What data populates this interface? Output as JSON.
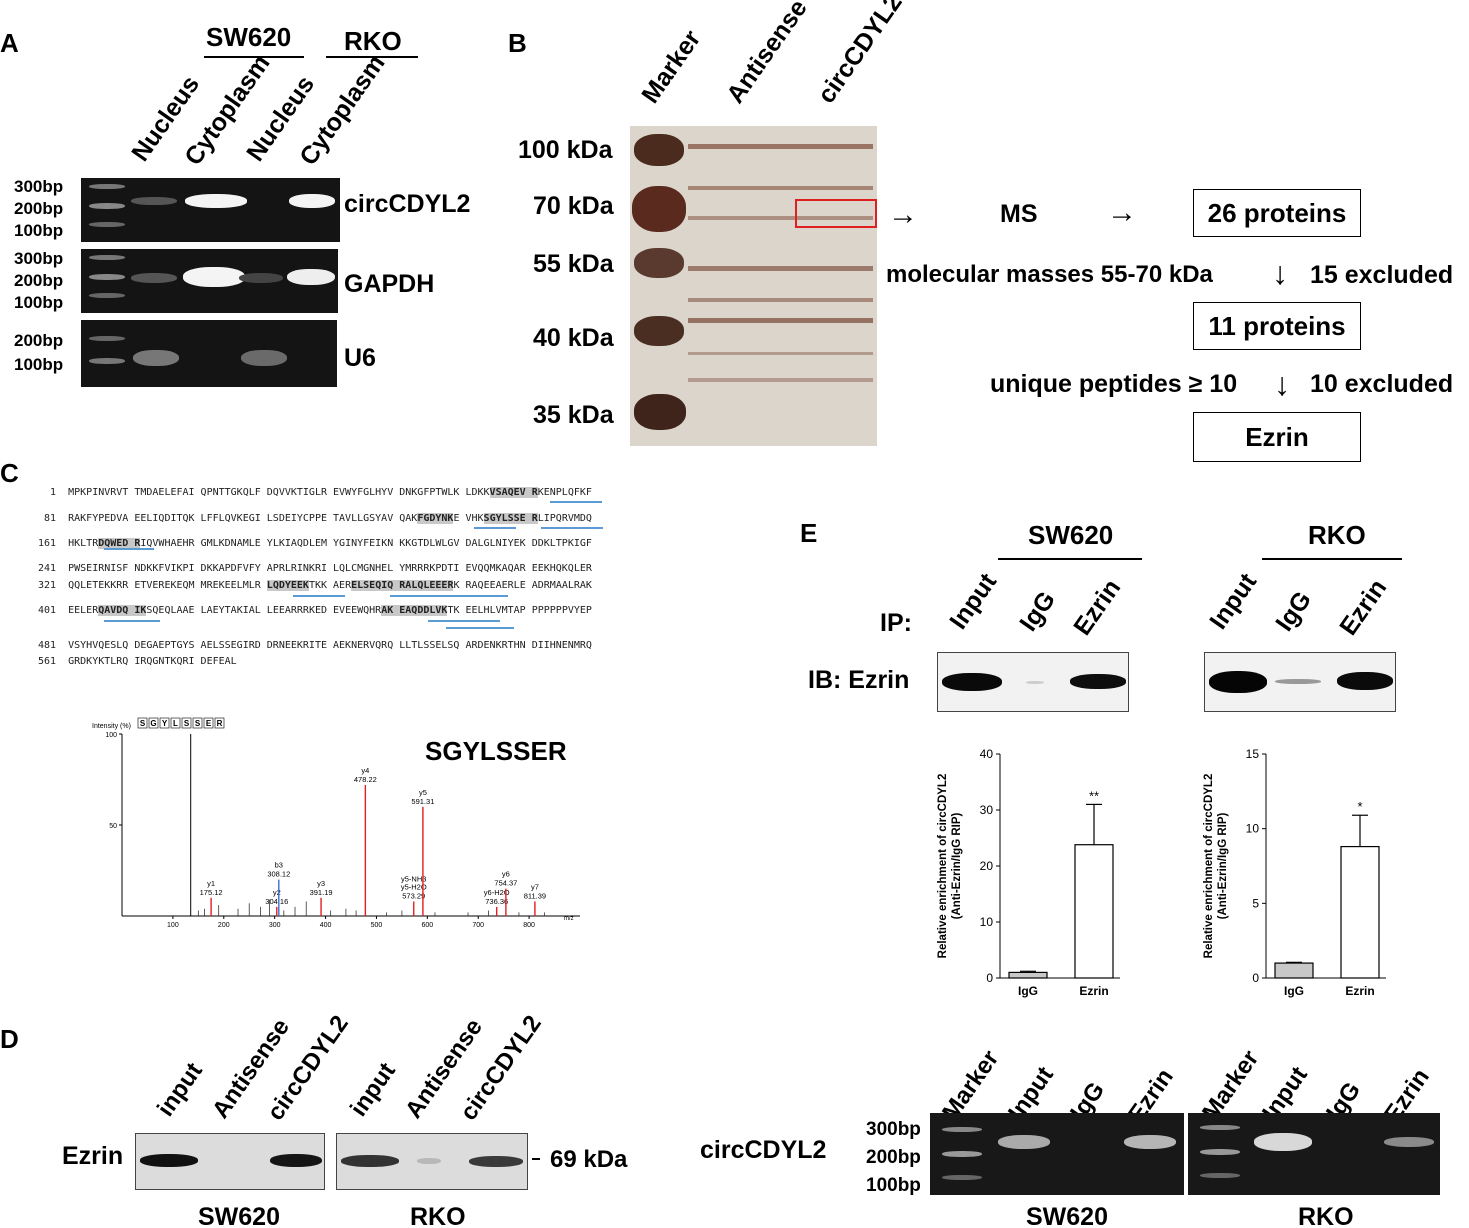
{
  "panelA": {
    "label": "A",
    "cell_lines": [
      "SW620",
      "RKO"
    ],
    "lanes": [
      "Nucleus",
      "Cytoplasm",
      "Nucleus",
      "Cytoplasm"
    ],
    "gels": [
      {
        "name": "circCDYL2",
        "ladder": [
          "300bp",
          "200bp",
          "100bp"
        ]
      },
      {
        "name": "GAPDH",
        "ladder": [
          "300bp",
          "200bp",
          "100bp"
        ]
      },
      {
        "name": "U6",
        "ladder": [
          "200bp",
          "100bp"
        ]
      }
    ]
  },
  "panelB": {
    "label": "B",
    "lanes": [
      "Marker",
      "Antisense",
      "circCDYL2"
    ],
    "markers": [
      "100 kDa",
      "70 kDa",
      "55 kDa",
      "40 kDa",
      "35 kDa"
    ],
    "ms": "MS",
    "step1": "26 proteins",
    "filter1": "molecular masses 55-70 kDa",
    "excl1": "15 excluded",
    "step2": "11 proteins",
    "filter2": "unique peptides ≥ 10",
    "excl2": "10 excluded",
    "result": "Ezrin"
  },
  "panelC": {
    "label": "C",
    "sequence": [
      {
        "n": "1",
        "segs": [
          {
            "t": "MPKPINVRVT TMDAELEFAI QPNTTGKQLF DQVVKTIGLR EVWYFGLHYV DNKGFPTWLK LDKK"
          },
          {
            "t": "VSAQEV R",
            "h": true
          },
          {
            "t": "KENPLQFKF"
          }
        ]
      },
      {
        "n": "81",
        "segs": [
          {
            "t": "RAKFYPEDVA EELIQDITQK LFFLQVKEGI LSDEIYCPPE TAVLLGSYAV QAK"
          },
          {
            "t": "FGDYNK",
            "h": true
          },
          {
            "t": "E VHK"
          },
          {
            "t": "SGYLSSE R",
            "h": true
          },
          {
            "t": "LIPQRVMDQ"
          }
        ]
      },
      {
        "n": "161",
        "segs": [
          {
            "t": "HKLTR"
          },
          {
            "t": "DQWED R",
            "h": true
          },
          {
            "t": "IQVWHAEHR GMLKDNAMLE YLKIAQDLEM YGINYFEIKN KKGTDLWLGV DALGLNIYEK DDKLTPKIGF"
          }
        ]
      },
      {
        "n": "241",
        "segs": [
          {
            "t": "PWSEIRNISF NDKKFVIKPI DKKAPDFVFY APRLRINKRI LQLCMGNHEL YMRRRKPDTI EVQQMKAQAR EEKHQKQLER"
          }
        ]
      },
      {
        "n": "321",
        "segs": [
          {
            "t": "QQLETEKKRR ETVEREKEQM MREKEELMLR "
          },
          {
            "t": "LQDYEEK",
            "h": true
          },
          {
            "t": "TKK AER"
          },
          {
            "t": "ELSEQIQ RALQLEEER",
            "h": true
          },
          {
            "t": "K RAQEEAERLE ADRMAALRAK"
          }
        ]
      },
      {
        "n": "401",
        "segs": [
          {
            "t": "EELER"
          },
          {
            "t": "QAVDQ IK",
            "h": true
          },
          {
            "t": "SQEQLAAE LAEYTAKIAL LEEARRRKED EVEEWQHR"
          },
          {
            "t": "AK EAQDDLVK",
            "h": true
          },
          {
            "t": "TK EELHLVMTAP PPPPPPVYEP"
          }
        ]
      },
      {
        "n": "481",
        "segs": [
          {
            "t": "VSYHVQESLQ DEGAEPTGYS AELSSEGIRD DRNEEKRITE AEKNERVQRQ LLTLSSELSQ ARDENKRTHN DIIHNENMRQ"
          }
        ]
      },
      {
        "n": "561",
        "segs": [
          {
            "t": "GRDKYKTLRQ IRQGNTKQRI DEFEAL"
          }
        ]
      }
    ],
    "spectrum": {
      "peptide": "SGYLSSER",
      "residues": [
        "S",
        "G",
        "Y",
        "L",
        "S",
        "S",
        "E",
        "R"
      ],
      "ylabel": "Intensity (%)",
      "xlabel": "m/z",
      "yticks": [
        "100",
        "50"
      ],
      "xticks": [
        "100",
        "200",
        "300",
        "400",
        "500",
        "600",
        "700",
        "800"
      ],
      "peaks": [
        {
          "ion": "y1",
          "mz": "175.12",
          "x": 175.12,
          "y": 10
        },
        {
          "ion": "y2",
          "mz": "304.16",
          "x": 304.16,
          "y": 5
        },
        {
          "ion": "b3",
          "mz": "308.12",
          "x": 308.12,
          "y": 20
        },
        {
          "ion": "y3",
          "mz": "391.19",
          "x": 391.19,
          "y": 10
        },
        {
          "ion": "y4",
          "mz": "478.22",
          "x": 478.22,
          "y": 72
        },
        {
          "ion": "y5-NH3 / y5-H2O",
          "mz": "573.29",
          "x": 573.29,
          "y": 8
        },
        {
          "ion": "y5",
          "mz": "591.31",
          "x": 591.31,
          "y": 60
        },
        {
          "ion": "y6-H2O",
          "mz": "736.36",
          "x": 736.36,
          "y": 5
        },
        {
          "ion": "y6",
          "mz": "754.37",
          "x": 754.37,
          "y": 15
        },
        {
          "ion": "y7",
          "mz": "811.39",
          "x": 811.39,
          "y": 8
        }
      ]
    }
  },
  "panelD": {
    "label": "D",
    "lanes": [
      "input",
      "Antisense",
      "circCDYL2",
      "input",
      "Antisense",
      "circCDYL2"
    ],
    "target": "Ezrin",
    "size": "69 kDa",
    "cell_lines": [
      "SW620",
      "RKO"
    ]
  },
  "panelE": {
    "label": "E",
    "cell_lines": [
      "SW620",
      "RKO"
    ],
    "ip_label": "IP:",
    "ip_lanes": [
      "Input",
      "IgG",
      "Ezrin"
    ],
    "ib_label": "IB: Ezrin",
    "gel_label": "circCDYL2",
    "gel_lanes": [
      "Marker",
      "Input",
      "IgG",
      "Ezrin"
    ],
    "ladder": [
      "300bp",
      "200bp",
      "100bp"
    ]
  },
  "chart_data": [
    {
      "type": "bar",
      "title": "SW620",
      "categories": [
        "IgG",
        "Ezrin"
      ],
      "values": [
        1,
        23.8
      ],
      "errors": [
        0.2,
        7.2
      ],
      "significance": [
        "",
        "**"
      ],
      "ylabel": "Relative enrichment of circCDYL2 (Anti-Ezrin/IgG RIP)",
      "ylim": [
        0,
        40
      ],
      "yticks": [
        "0",
        "10",
        "20",
        "30",
        "40"
      ],
      "colors": [
        "#c8c8c8",
        "#ffffff"
      ]
    },
    {
      "type": "bar",
      "title": "RKO",
      "categories": [
        "IgG",
        "Ezrin"
      ],
      "values": [
        1,
        8.8
      ],
      "errors": [
        0.05,
        2.1
      ],
      "significance": [
        "",
        "*"
      ],
      "ylabel": "Relative enrichment of circCDYL2 (Anti-Ezrin/IgG RIP)",
      "ylim": [
        0,
        15
      ],
      "yticks": [
        "0",
        "5",
        "10",
        "15"
      ],
      "colors": [
        "#c8c8c8",
        "#ffffff"
      ]
    }
  ]
}
